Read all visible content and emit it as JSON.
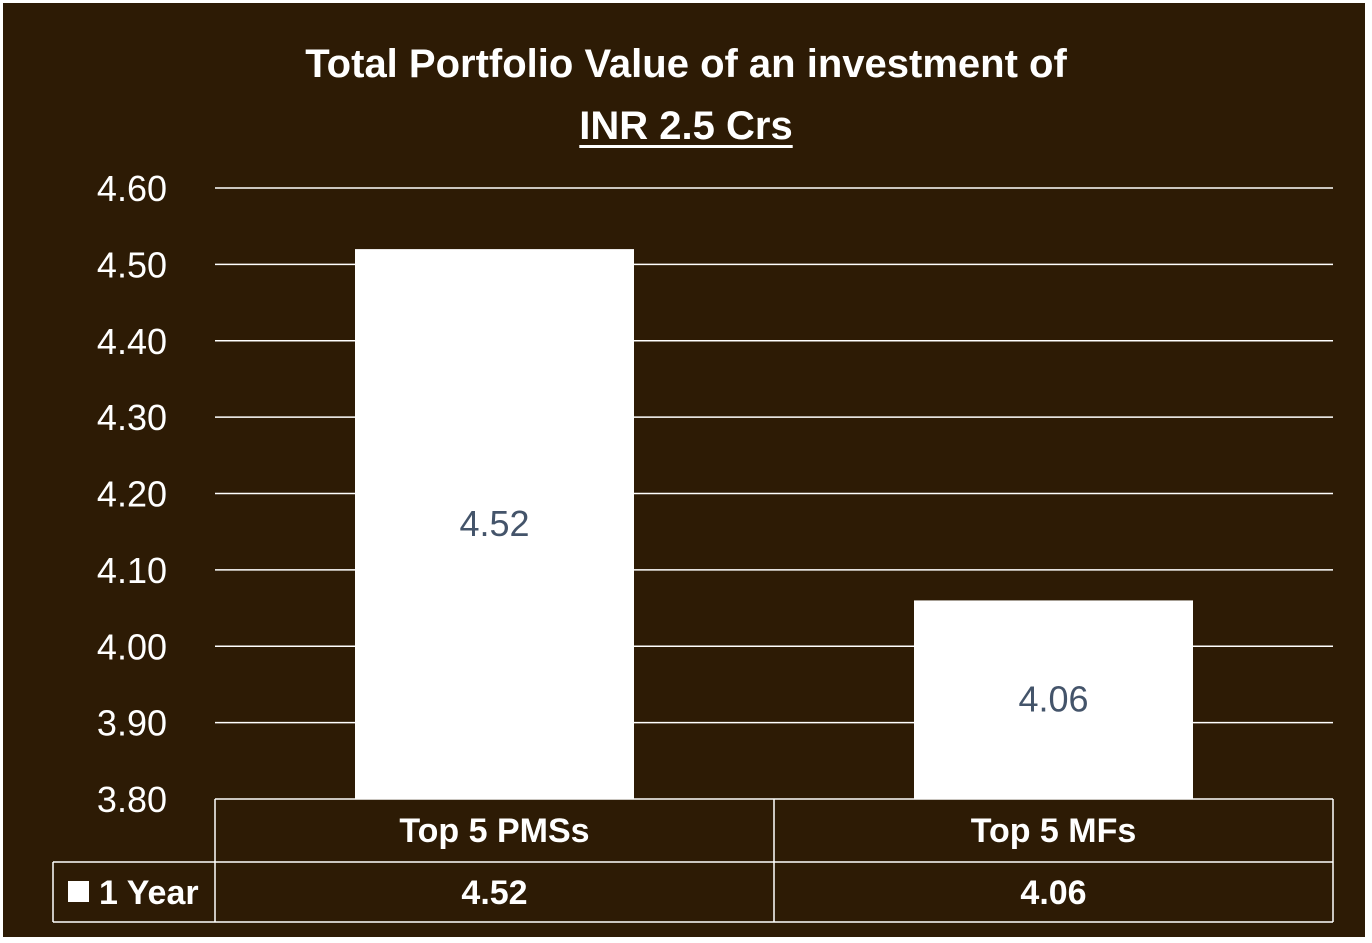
{
  "chart_data": {
    "type": "bar",
    "title": "Total Portfolio Value of an investment of",
    "subtitle": "INR 2.5 Crs",
    "categories": [
      "Top 5 PMSs",
      "Top 5 MFs"
    ],
    "series": [
      {
        "name": "1 Year",
        "values": [
          4.52,
          4.06
        ],
        "color": "#ffffff"
      }
    ],
    "data_labels": [
      "4.52",
      "4.06"
    ],
    "table_values": [
      "4.52",
      "4.06"
    ],
    "ylim": [
      3.8,
      4.6
    ],
    "yticks": [
      "4.60",
      "4.50",
      "4.40",
      "4.30",
      "4.20",
      "4.10",
      "4.00",
      "3.90",
      "3.80"
    ],
    "ytick_values": [
      4.6,
      4.5,
      4.4,
      4.3,
      4.2,
      4.1,
      4.0,
      3.9,
      3.8
    ],
    "grid": true,
    "legend": "data-table",
    "colors": {
      "background": "#2d1b05",
      "bar": "#ffffff",
      "data_label": "#44546a",
      "text": "#ffffff"
    }
  }
}
